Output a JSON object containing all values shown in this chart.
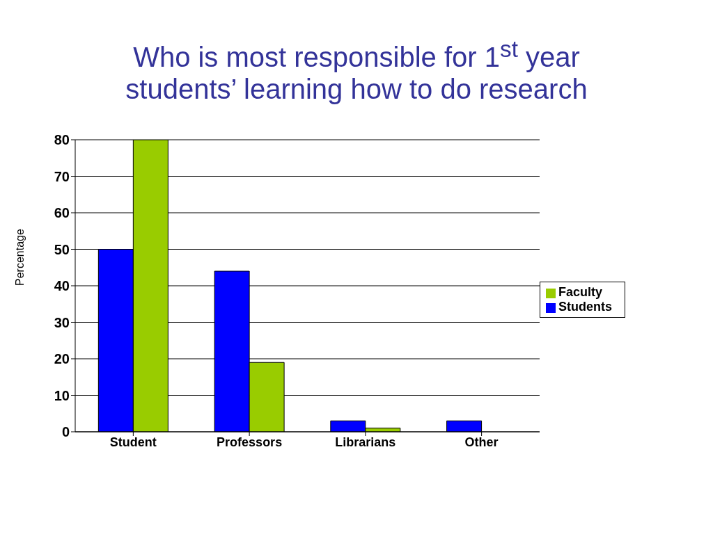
{
  "chart_data": {
    "type": "bar",
    "title": "Who is most responsible for 1$^{st}$ year students’ learning how to do research",
    "ylabel": "Percentage",
    "categories": [
      "Student",
      "Professors",
      "Librarians",
      "Other"
    ],
    "series": [
      {
        "name": "Students",
        "color": "#0000ff",
        "values": [
          50,
          44,
          3,
          3
        ]
      },
      {
        "name": "Faculty",
        "color": "#99cc00",
        "values": [
          80,
          19,
          1,
          0
        ]
      }
    ],
    "ylim": [
      0,
      80
    ],
    "yticks": [
      0,
      10,
      20,
      30,
      40,
      50,
      60,
      70,
      80
    ],
    "grid": "y",
    "legend": "right"
  }
}
